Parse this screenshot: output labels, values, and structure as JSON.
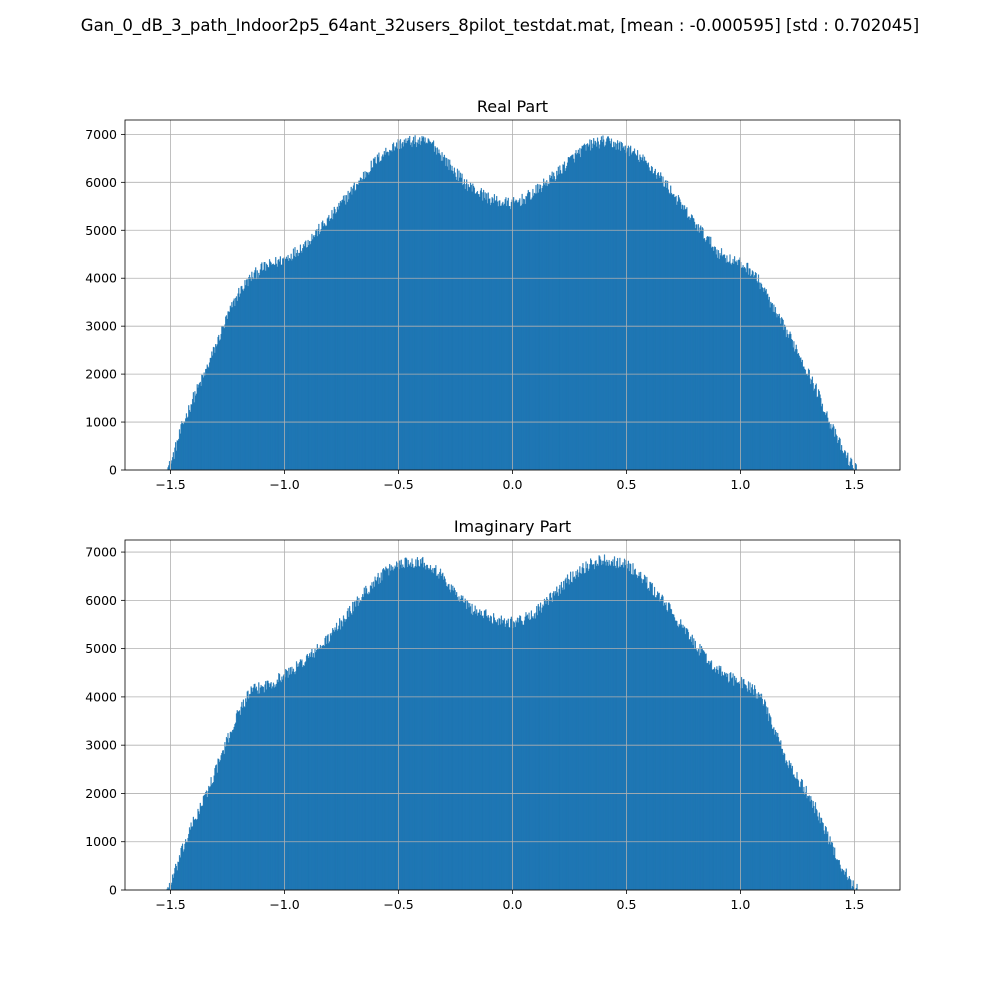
{
  "figure": {
    "suptitle": "Gan_0_dB_3_path_Indoor2p5_64ant_32users_8pilot_testdat.mat, [mean : -0.000595] [std : 0.702045]"
  },
  "colors": {
    "bars": "#1f77b4",
    "grid": "#b0b0b0",
    "axes": "#000000"
  },
  "chart_data": [
    {
      "type": "bar",
      "subtype": "histogram",
      "title": "Real Part",
      "xlabel": "",
      "ylabel": "",
      "xlim": [
        -1.7,
        1.7
      ],
      "ylim": [
        0,
        7300
      ],
      "xticks": [
        -1.5,
        -1.0,
        -0.5,
        0.0,
        0.5,
        1.0,
        1.5
      ],
      "xtick_labels": [
        "−1.5",
        "−1.0",
        "−0.5",
        "0.0",
        "0.5",
        "1.0",
        "1.5"
      ],
      "yticks": [
        0,
        1000,
        2000,
        3000,
        4000,
        5000,
        6000,
        7000
      ],
      "ytick_labels": [
        "0",
        "1000",
        "2000",
        "3000",
        "4000",
        "5000",
        "6000",
        "7000"
      ],
      "grid": true,
      "envelope_x": [
        -1.52,
        -1.5,
        -1.45,
        -1.4,
        -1.35,
        -1.3,
        -1.25,
        -1.2,
        -1.15,
        -1.1,
        -1.05,
        -1.0,
        -0.95,
        -0.9,
        -0.85,
        -0.8,
        -0.75,
        -0.7,
        -0.65,
        -0.6,
        -0.55,
        -0.5,
        -0.45,
        -0.4,
        -0.35,
        -0.3,
        -0.25,
        -0.2,
        -0.15,
        -0.1,
        -0.05,
        0.0,
        0.05,
        0.1,
        0.15,
        0.2,
        0.25,
        0.3,
        0.35,
        0.4,
        0.45,
        0.5,
        0.55,
        0.6,
        0.65,
        0.7,
        0.75,
        0.8,
        0.85,
        0.9,
        0.95,
        1.0,
        1.05,
        1.1,
        1.15,
        1.2,
        1.25,
        1.3,
        1.35,
        1.4,
        1.45,
        1.5,
        1.52
      ],
      "envelope_y": [
        0,
        100,
        900,
        1500,
        2000,
        2600,
        3200,
        3700,
        4000,
        4200,
        4300,
        4400,
        4550,
        4750,
        5000,
        5250,
        5550,
        5850,
        6150,
        6450,
        6650,
        6800,
        6850,
        6850,
        6800,
        6500,
        6200,
        5950,
        5800,
        5650,
        5580,
        5550,
        5650,
        5800,
        6000,
        6200,
        6450,
        6650,
        6800,
        6850,
        6800,
        6700,
        6550,
        6350,
        6100,
        5800,
        5450,
        5150,
        4850,
        4550,
        4400,
        4300,
        4150,
        3800,
        3300,
        2900,
        2500,
        2000,
        1500,
        900,
        400,
        30,
        0
      ]
    },
    {
      "type": "bar",
      "subtype": "histogram",
      "title": "Imaginary Part",
      "xlabel": "",
      "ylabel": "",
      "xlim": [
        -1.7,
        1.7
      ],
      "ylim": [
        0,
        7250
      ],
      "xticks": [
        -1.5,
        -1.0,
        -0.5,
        0.0,
        0.5,
        1.0,
        1.5
      ],
      "xtick_labels": [
        "−1.5",
        "−1.0",
        "−0.5",
        "0.0",
        "0.5",
        "1.0",
        "1.5"
      ],
      "yticks": [
        0,
        1000,
        2000,
        3000,
        4000,
        5000,
        6000,
        7000
      ],
      "ytick_labels": [
        "0",
        "1000",
        "2000",
        "3000",
        "4000",
        "5000",
        "6000",
        "7000"
      ],
      "grid": true,
      "envelope_x": [
        -1.52,
        -1.5,
        -1.45,
        -1.4,
        -1.35,
        -1.3,
        -1.25,
        -1.2,
        -1.15,
        -1.1,
        -1.05,
        -1.0,
        -0.95,
        -0.9,
        -0.85,
        -0.8,
        -0.75,
        -0.7,
        -0.65,
        -0.6,
        -0.55,
        -0.5,
        -0.45,
        -0.4,
        -0.35,
        -0.3,
        -0.25,
        -0.2,
        -0.15,
        -0.1,
        -0.05,
        0.0,
        0.05,
        0.1,
        0.15,
        0.2,
        0.25,
        0.3,
        0.35,
        0.4,
        0.45,
        0.5,
        0.55,
        0.6,
        0.65,
        0.7,
        0.75,
        0.8,
        0.85,
        0.9,
        0.95,
        1.0,
        1.05,
        1.1,
        1.15,
        1.2,
        1.25,
        1.3,
        1.35,
        1.4,
        1.45,
        1.5,
        1.52
      ],
      "envelope_y": [
        0,
        100,
        800,
        1400,
        1900,
        2500,
        3100,
        3700,
        4100,
        4200,
        4300,
        4450,
        4600,
        4800,
        5000,
        5250,
        5550,
        5850,
        6150,
        6400,
        6600,
        6750,
        6800,
        6800,
        6700,
        6450,
        6150,
        5900,
        5750,
        5650,
        5580,
        5550,
        5600,
        5750,
        5950,
        6200,
        6450,
        6650,
        6750,
        6850,
        6800,
        6750,
        6550,
        6300,
        6050,
        5750,
        5400,
        5100,
        4800,
        4550,
        4400,
        4300,
        4200,
        3900,
        3300,
        2700,
        2300,
        1950,
        1500,
        900,
        450,
        30,
        0
      ]
    }
  ]
}
